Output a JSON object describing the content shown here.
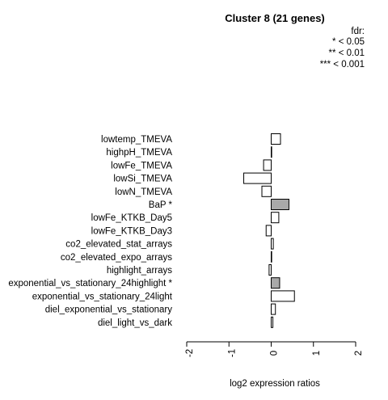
{
  "chart_data": {
    "type": "bar",
    "orientation": "horizontal",
    "title": "Cluster 8 (21 genes)",
    "xlabel": "log2 expression ratios",
    "xlim": [
      -2,
      2
    ],
    "xticks": [
      "-2",
      "-1",
      "0",
      "1",
      "2"
    ],
    "xtick_values": [
      -2,
      -1,
      0,
      1,
      2
    ],
    "legend": {
      "title": "fdr:",
      "entries": [
        "* < 0.05",
        "** < 0.01",
        "*** < 0.001"
      ]
    },
    "categories": [
      "lowtemp_TMEVA",
      "highpH_TMEVA",
      "lowFe_TMEVA",
      "lowSi_TMEVA",
      "lowN_TMEVA",
      "BaP *",
      "lowFe_KTKB_Day5",
      "lowFe_KTKB_Day3",
      "co2_elevated_stat_arrays",
      "co2_elevated_expo_arrays",
      "highlight_arrays",
      "exponential_vs_stationary_24highlight *",
      "exponential_vs_stationary_24light",
      "diel_exponential_vs_stationary",
      "diel_light_vs_dark"
    ],
    "values": [
      0.22,
      0.0,
      -0.18,
      -0.65,
      -0.22,
      0.42,
      0.18,
      -0.12,
      0.05,
      0.0,
      -0.05,
      0.2,
      0.55,
      0.1,
      0.04
    ],
    "significant": [
      false,
      false,
      false,
      false,
      false,
      true,
      false,
      false,
      false,
      false,
      false,
      true,
      false,
      false,
      false
    ],
    "colors": {
      "significant": "#a9a9a9",
      "normal": "#ffffff",
      "stroke": "#000000"
    }
  }
}
